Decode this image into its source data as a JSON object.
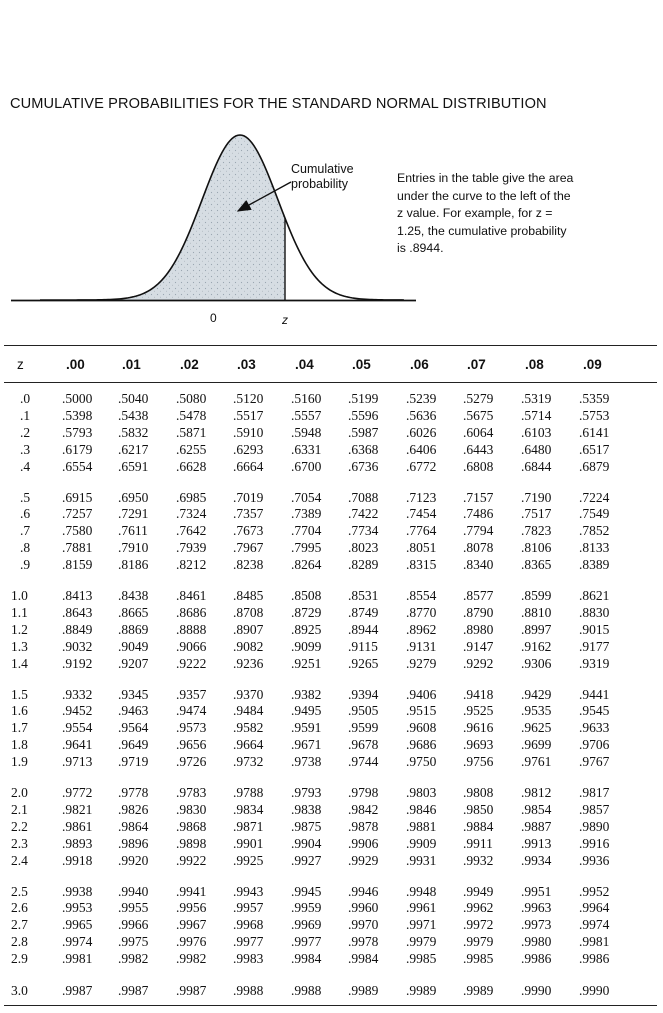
{
  "title": "CUMULATIVE PROBABILITIES FOR THE STANDARD NORMAL DISTRIBUTION",
  "figure": {
    "curve_label": "Cumulative\nprobability",
    "explanation": "Entries in the table give the area under the curve to the left of the z value. For example, for z = 1.25, the cumulative probability is .8944.",
    "axis_zero": "0",
    "axis_z": "z"
  },
  "table": {
    "z_header": "z",
    "columns": [
      ".00",
      ".01",
      ".02",
      ".03",
      ".04",
      ".05",
      ".06",
      ".07",
      ".08",
      ".09"
    ],
    "rows": [
      {
        "z": ".0",
        "values": [
          ".5000",
          ".5040",
          ".5080",
          ".5120",
          ".5160",
          ".5199",
          ".5239",
          ".5279",
          ".5319",
          ".5359"
        ]
      },
      {
        "z": ".1",
        "values": [
          ".5398",
          ".5438",
          ".5478",
          ".5517",
          ".5557",
          ".5596",
          ".5636",
          ".5675",
          ".5714",
          ".5753"
        ]
      },
      {
        "z": ".2",
        "values": [
          ".5793",
          ".5832",
          ".5871",
          ".5910",
          ".5948",
          ".5987",
          ".6026",
          ".6064",
          ".6103",
          ".6141"
        ]
      },
      {
        "z": ".3",
        "values": [
          ".6179",
          ".6217",
          ".6255",
          ".6293",
          ".6331",
          ".6368",
          ".6406",
          ".6443",
          ".6480",
          ".6517"
        ]
      },
      {
        "z": ".4",
        "values": [
          ".6554",
          ".6591",
          ".6628",
          ".6664",
          ".6700",
          ".6736",
          ".6772",
          ".6808",
          ".6844",
          ".6879"
        ]
      },
      {
        "z": ".5",
        "values": [
          ".6915",
          ".6950",
          ".6985",
          ".7019",
          ".7054",
          ".7088",
          ".7123",
          ".7157",
          ".7190",
          ".7224"
        ]
      },
      {
        "z": ".6",
        "values": [
          ".7257",
          ".7291",
          ".7324",
          ".7357",
          ".7389",
          ".7422",
          ".7454",
          ".7486",
          ".7517",
          ".7549"
        ]
      },
      {
        "z": ".7",
        "values": [
          ".7580",
          ".7611",
          ".7642",
          ".7673",
          ".7704",
          ".7734",
          ".7764",
          ".7794",
          ".7823",
          ".7852"
        ]
      },
      {
        "z": ".8",
        "values": [
          ".7881",
          ".7910",
          ".7939",
          ".7967",
          ".7995",
          ".8023",
          ".8051",
          ".8078",
          ".8106",
          ".8133"
        ]
      },
      {
        "z": ".9",
        "values": [
          ".8159",
          ".8186",
          ".8212",
          ".8238",
          ".8264",
          ".8289",
          ".8315",
          ".8340",
          ".8365",
          ".8389"
        ]
      },
      {
        "z": "1.0",
        "values": [
          ".8413",
          ".8438",
          ".8461",
          ".8485",
          ".8508",
          ".8531",
          ".8554",
          ".8577",
          ".8599",
          ".8621"
        ]
      },
      {
        "z": "1.1",
        "values": [
          ".8643",
          ".8665",
          ".8686",
          ".8708",
          ".8729",
          ".8749",
          ".8770",
          ".8790",
          ".8810",
          ".8830"
        ]
      },
      {
        "z": "1.2",
        "values": [
          ".8849",
          ".8869",
          ".8888",
          ".8907",
          ".8925",
          ".8944",
          ".8962",
          ".8980",
          ".8997",
          ".9015"
        ]
      },
      {
        "z": "1.3",
        "values": [
          ".9032",
          ".9049",
          ".9066",
          ".9082",
          ".9099",
          ".9115",
          ".9131",
          ".9147",
          ".9162",
          ".9177"
        ]
      },
      {
        "z": "1.4",
        "values": [
          ".9192",
          ".9207",
          ".9222",
          ".9236",
          ".9251",
          ".9265",
          ".9279",
          ".9292",
          ".9306",
          ".9319"
        ]
      },
      {
        "z": "1.5",
        "values": [
          ".9332",
          ".9345",
          ".9357",
          ".9370",
          ".9382",
          ".9394",
          ".9406",
          ".9418",
          ".9429",
          ".9441"
        ]
      },
      {
        "z": "1.6",
        "values": [
          ".9452",
          ".9463",
          ".9474",
          ".9484",
          ".9495",
          ".9505",
          ".9515",
          ".9525",
          ".9535",
          ".9545"
        ]
      },
      {
        "z": "1.7",
        "values": [
          ".9554",
          ".9564",
          ".9573",
          ".9582",
          ".9591",
          ".9599",
          ".9608",
          ".9616",
          ".9625",
          ".9633"
        ]
      },
      {
        "z": "1.8",
        "values": [
          ".9641",
          ".9649",
          ".9656",
          ".9664",
          ".9671",
          ".9678",
          ".9686",
          ".9693",
          ".9699",
          ".9706"
        ]
      },
      {
        "z": "1.9",
        "values": [
          ".9713",
          ".9719",
          ".9726",
          ".9732",
          ".9738",
          ".9744",
          ".9750",
          ".9756",
          ".9761",
          ".9767"
        ]
      },
      {
        "z": "2.0",
        "values": [
          ".9772",
          ".9778",
          ".9783",
          ".9788",
          ".9793",
          ".9798",
          ".9803",
          ".9808",
          ".9812",
          ".9817"
        ]
      },
      {
        "z": "2.1",
        "values": [
          ".9821",
          ".9826",
          ".9830",
          ".9834",
          ".9838",
          ".9842",
          ".9846",
          ".9850",
          ".9854",
          ".9857"
        ]
      },
      {
        "z": "2.2",
        "values": [
          ".9861",
          ".9864",
          ".9868",
          ".9871",
          ".9875",
          ".9878",
          ".9881",
          ".9884",
          ".9887",
          ".9890"
        ]
      },
      {
        "z": "2.3",
        "values": [
          ".9893",
          ".9896",
          ".9898",
          ".9901",
          ".9904",
          ".9906",
          ".9909",
          ".9911",
          ".9913",
          ".9916"
        ]
      },
      {
        "z": "2.4",
        "values": [
          ".9918",
          ".9920",
          ".9922",
          ".9925",
          ".9927",
          ".9929",
          ".9931",
          ".9932",
          ".9934",
          ".9936"
        ]
      },
      {
        "z": "2.5",
        "values": [
          ".9938",
          ".9940",
          ".9941",
          ".9943",
          ".9945",
          ".9946",
          ".9948",
          ".9949",
          ".9951",
          ".9952"
        ]
      },
      {
        "z": "2.6",
        "values": [
          ".9953",
          ".9955",
          ".9956",
          ".9957",
          ".9959",
          ".9960",
          ".9961",
          ".9962",
          ".9963",
          ".9964"
        ]
      },
      {
        "z": "2.7",
        "values": [
          ".9965",
          ".9966",
          ".9967",
          ".9968",
          ".9969",
          ".9970",
          ".9971",
          ".9972",
          ".9973",
          ".9974"
        ]
      },
      {
        "z": "2.8",
        "values": [
          ".9974",
          ".9975",
          ".9976",
          ".9977",
          ".9977",
          ".9978",
          ".9979",
          ".9979",
          ".9980",
          ".9981"
        ]
      },
      {
        "z": "2.9",
        "values": [
          ".9981",
          ".9982",
          ".9982",
          ".9983",
          ".9984",
          ".9984",
          ".9985",
          ".9985",
          ".9986",
          ".9986"
        ]
      },
      {
        "z": "3.0",
        "values": [
          ".9987",
          ".9987",
          ".9987",
          ".9988",
          ".9988",
          ".9989",
          ".9989",
          ".9989",
          ".9990",
          ".9990"
        ]
      }
    ]
  }
}
